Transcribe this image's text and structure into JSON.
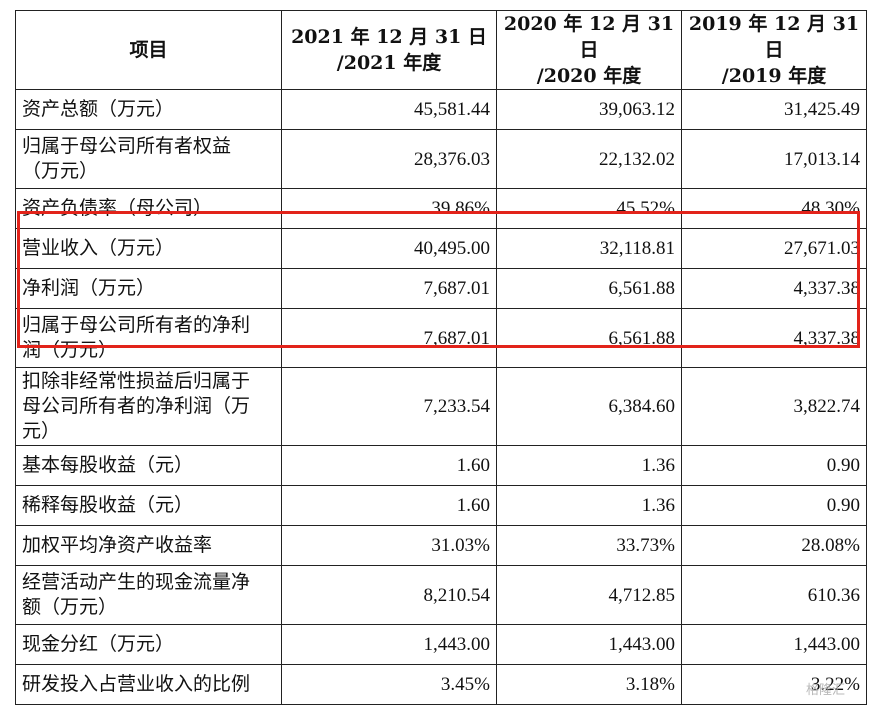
{
  "header": {
    "item": "项目",
    "col2021": [
      "2021 年 12 月 31 日",
      "/2021 年度"
    ],
    "col2020": [
      "2020 年 12 月 31 日",
      "/2020 年度"
    ],
    "col2019": [
      "2019 年 12 月 31 日",
      "/2019 年度"
    ]
  },
  "rows": [
    {
      "label": [
        "资产总额（万元）"
      ],
      "v2021": "45,581.44",
      "v2020": "39,063.12",
      "v2019": "31,425.49"
    },
    {
      "label": [
        "归属于母公司所有者权益",
        "（万元）"
      ],
      "v2021": "28,376.03",
      "v2020": "22,132.02",
      "v2019": "17,013.14"
    },
    {
      "label": [
        "资产负债率（母公司）"
      ],
      "v2021": "39.86%",
      "v2020": "45.52%",
      "v2019": "48.30%"
    },
    {
      "label": [
        "营业收入（万元）"
      ],
      "v2021": "40,495.00",
      "v2020": "32,118.81",
      "v2019": "27,671.03"
    },
    {
      "label": [
        "净利润（万元）"
      ],
      "v2021": "7,687.01",
      "v2020": "6,561.88",
      "v2019": "4,337.38"
    },
    {
      "label": [
        "归属于母公司所有者的净利",
        "润（万元）"
      ],
      "v2021": "7,687.01",
      "v2020": "6,561.88",
      "v2019": "4,337.38"
    },
    {
      "label": [
        "扣除非经常性损益后归属于",
        "母公司所有者的净利润（万",
        "元）"
      ],
      "v2021": "7,233.54",
      "v2020": "6,384.60",
      "v2019": "3,822.74"
    },
    {
      "label": [
        "基本每股收益（元）"
      ],
      "v2021": "1.60",
      "v2020": "1.36",
      "v2019": "0.90"
    },
    {
      "label": [
        "稀释每股收益（元）"
      ],
      "v2021": "1.60",
      "v2020": "1.36",
      "v2019": "0.90"
    },
    {
      "label": [
        "加权平均净资产收益率"
      ],
      "v2021": "31.03%",
      "v2020": "33.73%",
      "v2019": "28.08%"
    },
    {
      "label": [
        "经营活动产生的现金流量净",
        "额（万元）"
      ],
      "v2021": "8,210.54",
      "v2020": "4,712.85",
      "v2019": "610.36"
    },
    {
      "label": [
        "现金分红（万元）"
      ],
      "v2021": "1,443.00",
      "v2020": "1,443.00",
      "v2019": "1,443.00"
    },
    {
      "label": [
        "研发投入占营业收入的比例"
      ],
      "v2021": "3.45%",
      "v2020": "3.18%",
      "v2019": "3.22%"
    }
  ],
  "highlight": {
    "color": "#e2231a"
  },
  "watermark": "格隆汇"
}
